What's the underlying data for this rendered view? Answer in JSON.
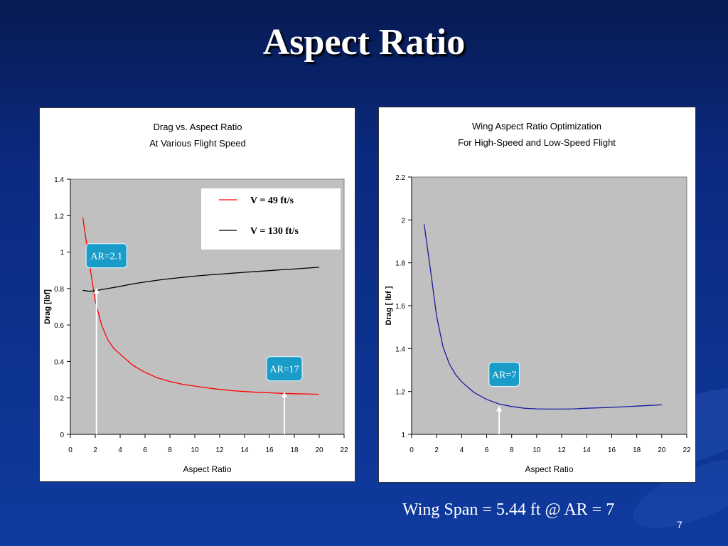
{
  "slide": {
    "title": "Aspect Ratio",
    "footer": "Wing Span = 5.44 ft  @ AR = 7",
    "page_number": "7",
    "background_color": "#0b2a80"
  },
  "chart_data": [
    {
      "type": "line",
      "title": [
        "Drag vs. Aspect Ratio",
        "At Various Flight Speed"
      ],
      "xlabel": "Aspect Ratio",
      "ylabel": "Drag [lbf]",
      "xlim": [
        0,
        22
      ],
      "ylim": [
        0,
        1.4
      ],
      "xticks": [
        "0",
        "2",
        "4",
        "6",
        "8",
        "10",
        "12",
        "14",
        "16",
        "18",
        "20",
        "22"
      ],
      "yticks": [
        "0",
        "0.2",
        "0.4",
        "0.6",
        "0.8",
        "1",
        "1.2",
        "1.4"
      ],
      "plot_background": "#c0c0c0",
      "grid": false,
      "legend_position": "top-right",
      "series": [
        {
          "name": "V = 49 ft/s",
          "color": "#ff0000",
          "x": [
            1,
            1.5,
            2,
            2.5,
            3,
            3.5,
            4,
            5,
            6,
            7,
            8,
            9,
            10,
            11,
            12,
            13,
            14,
            15,
            16,
            17,
            18,
            19,
            20
          ],
          "y": [
            1.19,
            0.95,
            0.73,
            0.6,
            0.52,
            0.47,
            0.44,
            0.38,
            0.34,
            0.31,
            0.29,
            0.275,
            0.265,
            0.255,
            0.247,
            0.24,
            0.235,
            0.231,
            0.228,
            0.225,
            0.223,
            0.222,
            0.22
          ]
        },
        {
          "name": "V = 130 ft/s",
          "color": "#000000",
          "x": [
            1,
            1.5,
            2,
            3,
            4,
            5,
            6,
            7,
            8,
            9,
            10,
            11,
            12,
            13,
            14,
            15,
            16,
            17,
            18,
            19,
            20
          ],
          "y": [
            0.79,
            0.785,
            0.788,
            0.8,
            0.812,
            0.825,
            0.836,
            0.846,
            0.854,
            0.861,
            0.868,
            0.874,
            0.879,
            0.884,
            0.889,
            0.894,
            0.898,
            0.903,
            0.907,
            0.912,
            0.917
          ]
        }
      ],
      "annotations": [
        {
          "text": "AR=2.1",
          "x": 2.1,
          "arrow_to_y": 0.8,
          "label_x": 2.9,
          "label_y": 0.98
        },
        {
          "text": "AR=17",
          "x": 17.2,
          "arrow_to_y": 0.23,
          "label_x": 17.2,
          "label_y": 0.36
        }
      ]
    },
    {
      "type": "line",
      "title": [
        "Wing Aspect Ratio Optimization",
        "For High-Speed and Low-Speed Flight"
      ],
      "xlabel": "Aspect Ratio",
      "ylabel": "Drag [ lbf ]",
      "xlim": [
        0,
        22
      ],
      "ylim": [
        1,
        2.2
      ],
      "xticks": [
        "0",
        "2",
        "4",
        "6",
        "8",
        "10",
        "12",
        "14",
        "16",
        "18",
        "20",
        "22"
      ],
      "yticks": [
        "1",
        "1.2",
        "1.4",
        "1.6",
        "1.8",
        "2",
        "2.2"
      ],
      "plot_background": "#c0c0c0",
      "grid": false,
      "series": [
        {
          "color": "#1a1aa0",
          "x": [
            1,
            1.5,
            2,
            2.5,
            3,
            3.5,
            4,
            5,
            6,
            7,
            8,
            9,
            10,
            11,
            12,
            13,
            14,
            15,
            16,
            17,
            18,
            19,
            20
          ],
          "y": [
            1.98,
            1.77,
            1.55,
            1.41,
            1.33,
            1.28,
            1.245,
            1.195,
            1.163,
            1.142,
            1.13,
            1.122,
            1.119,
            1.118,
            1.118,
            1.119,
            1.122,
            1.124,
            1.126,
            1.129,
            1.132,
            1.135,
            1.138
          ]
        }
      ],
      "annotations": [
        {
          "text": "AR=7",
          "x": 7.0,
          "arrow_to_y": 1.13,
          "label_x": 7.4,
          "label_y": 1.28
        }
      ]
    }
  ]
}
